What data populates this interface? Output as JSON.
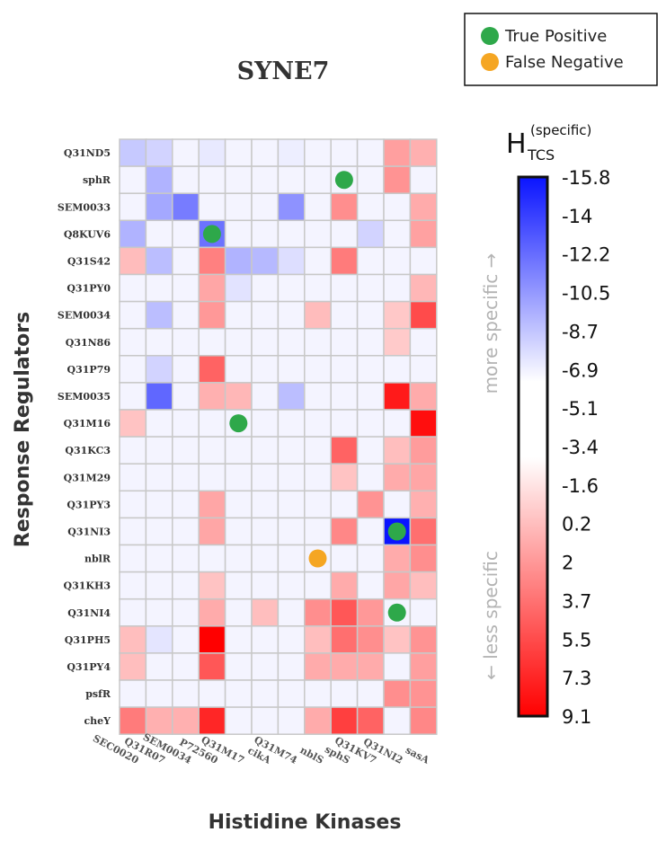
{
  "chart_data": {
    "type": "heatmap",
    "title": "SYNE7",
    "xlabel": "Histidine Kinases",
    "ylabel": "Response Regulators",
    "colorbar": {
      "title_main": "H",
      "title_sub": "TCS",
      "title_sup": "(specific)",
      "ticks": [
        "-15.8",
        "-14",
        "-12.2",
        "-10.5",
        "-8.7",
        "-6.9",
        "-5.1",
        "-3.4",
        "-1.6",
        "0.2",
        "2",
        "3.7",
        "5.5",
        "7.3",
        "9.1"
      ],
      "range": [
        -15.8,
        9.1
      ],
      "label_top": "more specific →",
      "label_bottom": "← less specific"
    },
    "legend": {
      "placement": "top-right",
      "entries": [
        {
          "label": "True Positive",
          "color": "#2ea84a"
        },
        {
          "label": "False Negative",
          "color": "#f5a623"
        }
      ]
    },
    "x_categories": [
      "SEC0020",
      "Q31R07",
      "SEM0034",
      "P72560",
      "Q31M17",
      "cikA",
      "Q31M74",
      "nblS",
      "sphS",
      "Q31KV7",
      "Q31NI2",
      "sasA"
    ],
    "y_categories": [
      "Q31ND5",
      "sphR",
      "SEM0033",
      "Q8KUV6",
      "Q31S42",
      "Q31PY0",
      "SEM0034",
      "Q31N86",
      "Q31P79",
      "SEM0035",
      "Q31M16",
      "Q31KC3",
      "Q31M29",
      "Q31PY3",
      "Q31NI3",
      "nblR",
      "Q31KH3",
      "Q31NI4",
      "Q31PH5",
      "Q31PY4",
      "psfR",
      "cheY"
    ],
    "values": [
      [
        -7.5,
        -7.0,
        -5.5,
        -6.0,
        -5.5,
        -5.5,
        -5.8,
        -5.5,
        -5.5,
        -5.5,
        2.5,
        1.8
      ],
      [
        -5.5,
        -8.5,
        -5.5,
        -5.5,
        -5.5,
        -5.5,
        -5.5,
        -5.5,
        -5.5,
        -5.5,
        3.0,
        -5.5
      ],
      [
        -5.5,
        -9.0,
        -11.0,
        -5.5,
        -5.5,
        -5.5,
        -10.0,
        -5.5,
        3.2,
        -5.5,
        -5.5,
        2.0
      ],
      [
        -8.5,
        -5.5,
        -5.5,
        -11.5,
        -5.5,
        -5.5,
        -5.5,
        -5.5,
        -5.5,
        -7.0,
        -5.5,
        2.4
      ],
      [
        1.3,
        -8.0,
        -5.5,
        3.8,
        -8.5,
        -8.2,
        -6.5,
        -5.5,
        4.0,
        -5.5,
        -5.5,
        -5.5
      ],
      [
        -5.5,
        -5.5,
        -5.5,
        2.2,
        -6.3,
        -5.5,
        -5.5,
        -5.5,
        -5.5,
        -5.5,
        -5.5,
        1.5
      ],
      [
        -5.5,
        -8.0,
        -5.5,
        2.8,
        -5.5,
        -5.5,
        -5.5,
        1.3,
        -5.5,
        -5.5,
        0.8,
        6.0
      ],
      [
        -5.5,
        -5.5,
        -5.5,
        -5.5,
        -5.5,
        -5.5,
        -5.5,
        -5.5,
        -5.5,
        -5.5,
        0.7,
        -5.5
      ],
      [
        -5.5,
        -7.0,
        -5.5,
        5.0,
        -5.5,
        -5.5,
        -5.5,
        -5.5,
        -5.5,
        -5.5,
        -5.5,
        -5.5
      ],
      [
        -5.5,
        -12.0,
        -5.5,
        1.8,
        1.5,
        -5.5,
        -8.0,
        -5.5,
        -5.5,
        -5.5,
        8.0,
        2.0
      ],
      [
        1.0,
        -5.5,
        -5.5,
        -5.5,
        -5.5,
        -5.5,
        -5.5,
        -5.5,
        -5.5,
        -5.5,
        -5.5,
        8.5
      ],
      [
        -5.5,
        -5.5,
        -5.5,
        -5.5,
        -5.5,
        -5.5,
        -5.5,
        -5.5,
        5.0,
        -5.5,
        1.2,
        2.6
      ],
      [
        -5.5,
        -5.5,
        -5.5,
        -5.5,
        -5.5,
        -5.5,
        -5.5,
        -5.5,
        1.0,
        -5.5,
        2.0,
        2.2
      ],
      [
        -5.5,
        -5.5,
        -5.5,
        2.2,
        -5.5,
        -5.5,
        -5.5,
        -5.5,
        -5.5,
        3.0,
        -5.5,
        1.8
      ],
      [
        -5.5,
        -5.5,
        -5.5,
        2.2,
        -5.5,
        -5.5,
        -5.5,
        -5.5,
        3.5,
        -5.5,
        -15.8,
        4.5
      ],
      [
        -5.5,
        -5.5,
        -5.5,
        -5.5,
        -5.5,
        -5.5,
        -5.5,
        -5.5,
        -5.5,
        -5.5,
        2.0,
        3.2
      ],
      [
        -5.5,
        -5.5,
        -5.5,
        1.0,
        -5.5,
        -5.5,
        -5.5,
        -5.5,
        2.0,
        -5.5,
        2.2,
        1.2
      ],
      [
        -5.5,
        -5.5,
        -5.5,
        2.0,
        -5.5,
        1.2,
        -5.5,
        3.2,
        5.5,
        2.8,
        -5.5,
        -5.5
      ],
      [
        1.2,
        -6.2,
        -5.5,
        9.1,
        -5.5,
        -5.5,
        -5.5,
        1.2,
        4.5,
        3.2,
        1.0,
        3.0
      ],
      [
        1.2,
        -5.5,
        -5.5,
        5.5,
        -5.5,
        -5.5,
        -5.5,
        2.0,
        2.0,
        2.0,
        -5.5,
        2.5
      ],
      [
        -5.5,
        -5.5,
        -5.5,
        -5.5,
        -5.5,
        -5.5,
        -5.5,
        -5.5,
        -5.5,
        -5.5,
        3.2,
        3.0
      ],
      [
        4.0,
        1.8,
        1.8,
        7.5,
        -5.5,
        -5.5,
        -5.5,
        2.0,
        6.5,
        5.0,
        -5.5,
        3.5
      ]
    ],
    "markers": [
      {
        "y": "sphR",
        "x": "sphS",
        "type": "True Positive"
      },
      {
        "y": "Q8KUV6",
        "x": "P72560",
        "type": "True Positive"
      },
      {
        "y": "Q31M16",
        "x": "Q31M17",
        "type": "True Positive"
      },
      {
        "y": "Q31NI3",
        "x": "Q31NI2",
        "type": "True Positive"
      },
      {
        "y": "Q31NI4",
        "x": "Q31NI2",
        "type": "True Positive"
      },
      {
        "y": "nblR",
        "x": "nblS",
        "type": "False Negative"
      }
    ]
  }
}
